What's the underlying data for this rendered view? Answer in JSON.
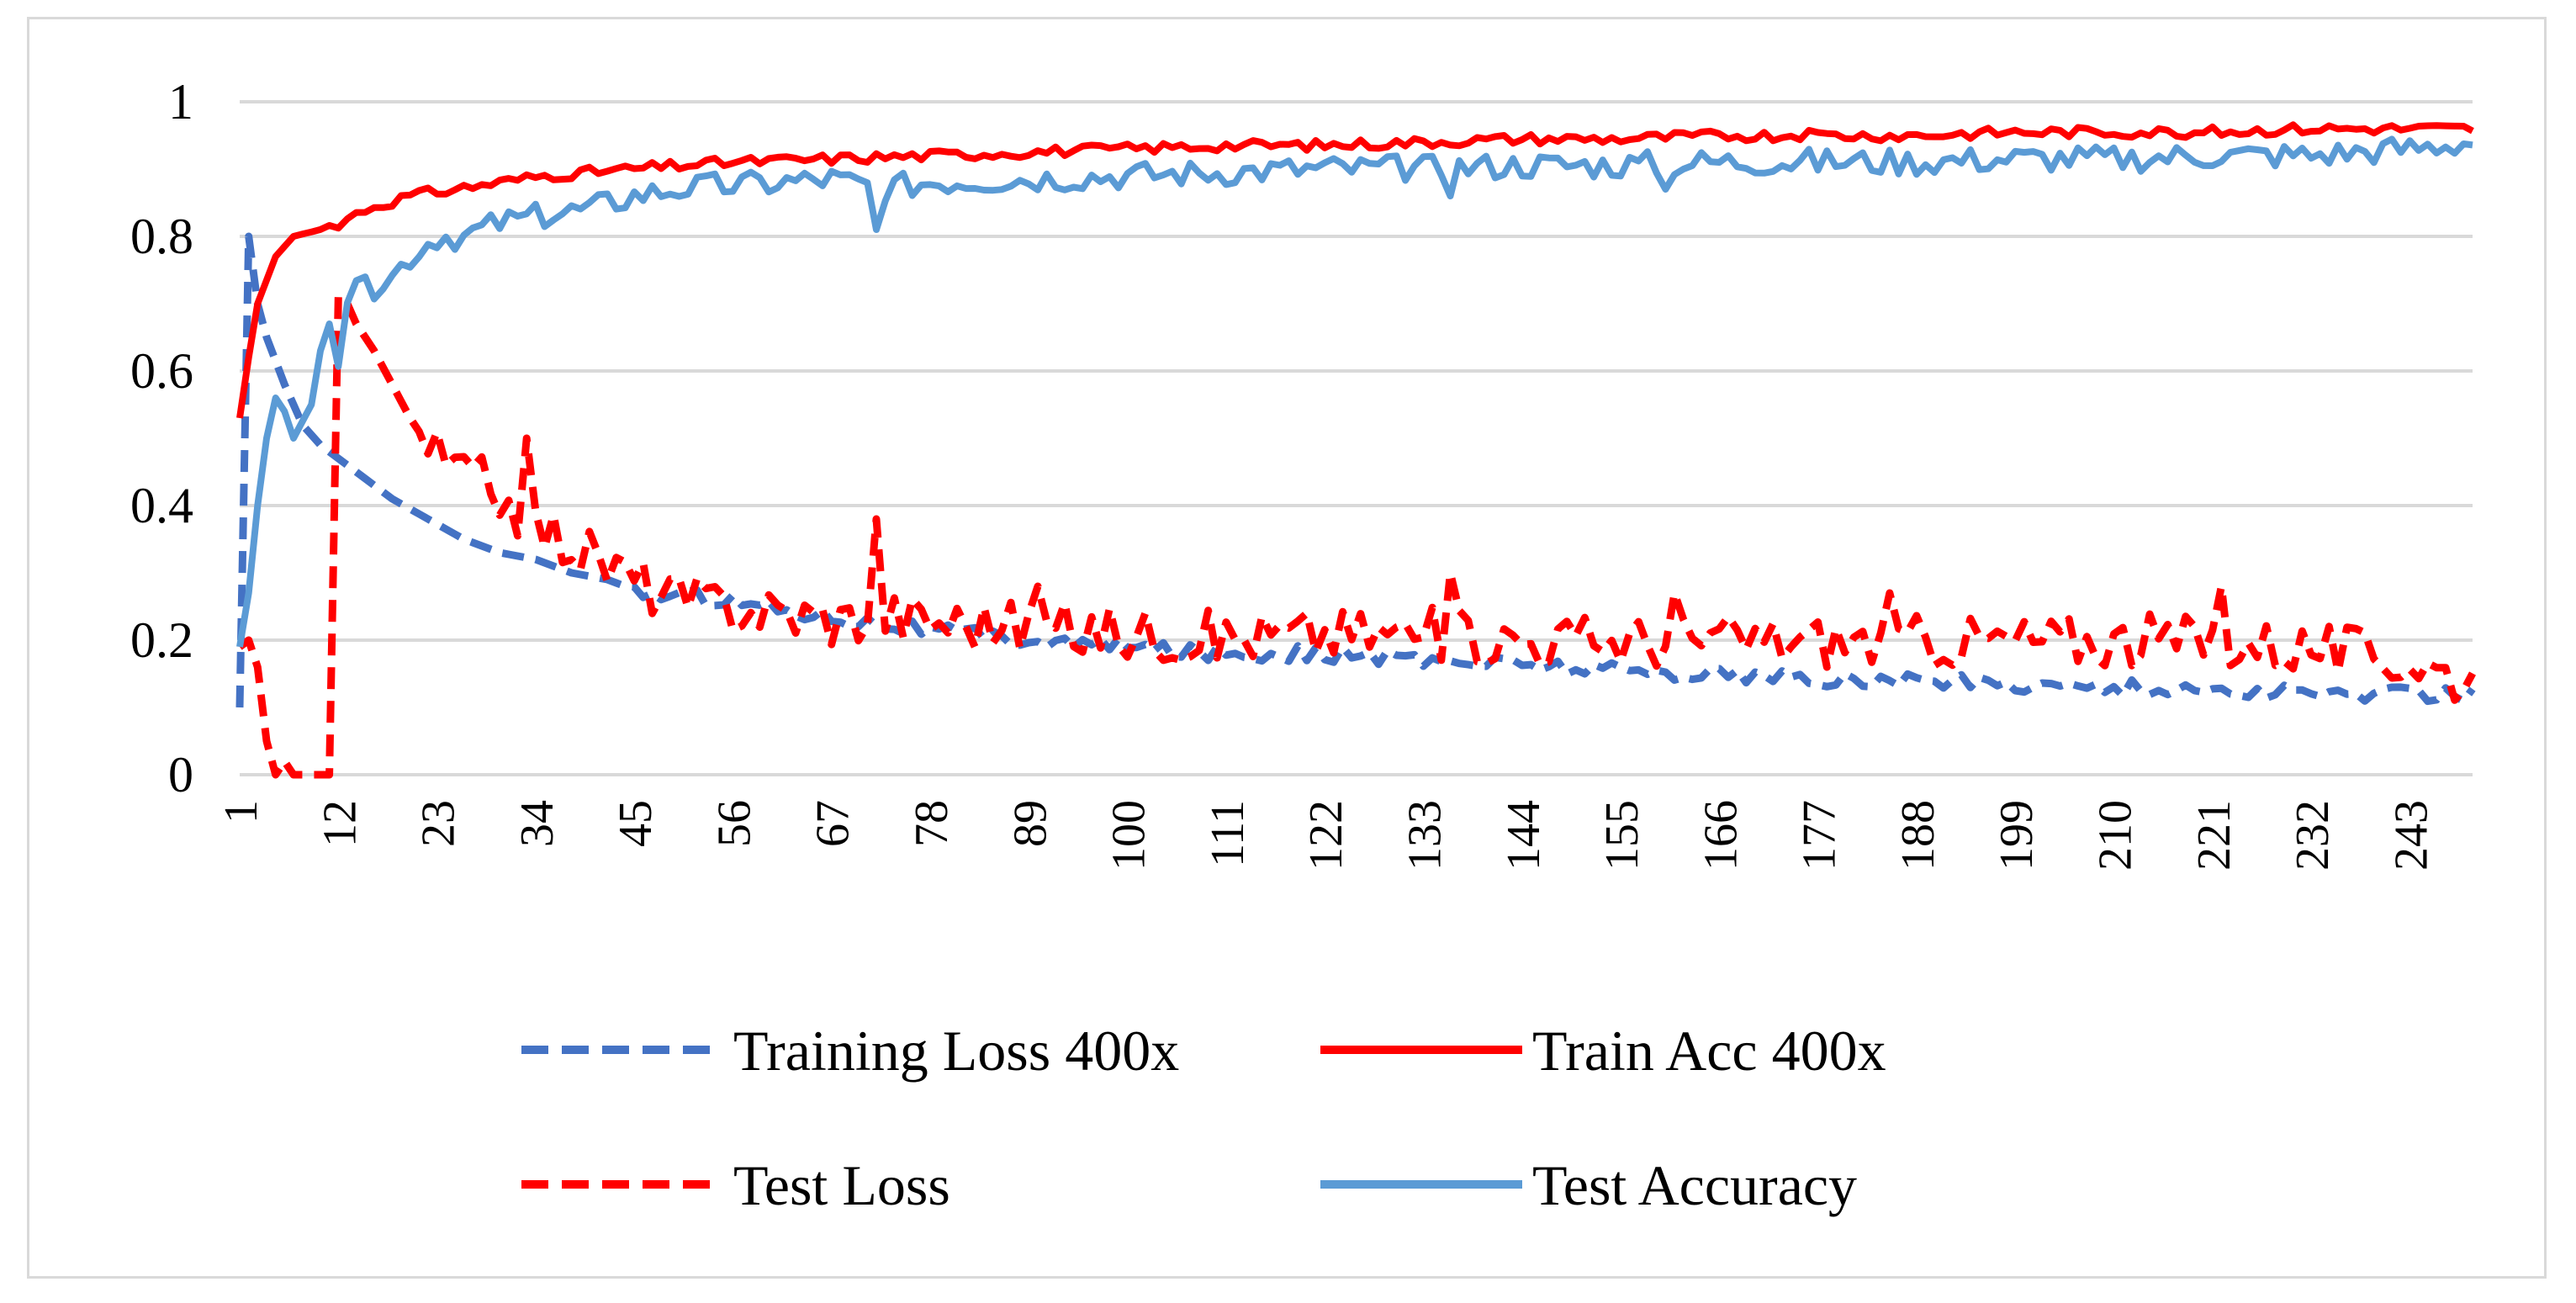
{
  "chart_data": {
    "type": "line",
    "title": "",
    "xlabel": "",
    "ylabel": "",
    "xlim": [
      1,
      250
    ],
    "ylim": [
      0,
      1
    ],
    "grid": true,
    "legend_position": "bottom",
    "y_ticks": [
      "0",
      "0.2",
      "0.4",
      "0.6",
      "0.8",
      "1"
    ],
    "x_ticks": [
      "1",
      "12",
      "23",
      "34",
      "45",
      "56",
      "67",
      "78",
      "89",
      "100",
      "111",
      "122",
      "133",
      "144",
      "155",
      "166",
      "177",
      "188",
      "199",
      "210",
      "221",
      "232",
      "243"
    ],
    "series": [
      {
        "name": "Training Loss 400x",
        "color": "#4472c4",
        "dash": "dashed",
        "anchors": [
          [
            1,
            0.1
          ],
          [
            2,
            0.8
          ],
          [
            3,
            0.7
          ],
          [
            4,
            0.65
          ],
          [
            6,
            0.58
          ],
          [
            8,
            0.52
          ],
          [
            10,
            0.49
          ],
          [
            12,
            0.47
          ],
          [
            15,
            0.44
          ],
          [
            18,
            0.41
          ],
          [
            22,
            0.38
          ],
          [
            26,
            0.35
          ],
          [
            30,
            0.33
          ],
          [
            34,
            0.32
          ],
          [
            38,
            0.3
          ],
          [
            42,
            0.29
          ],
          [
            46,
            0.27
          ],
          [
            50,
            0.265
          ],
          [
            56,
            0.26
          ],
          [
            62,
            0.245
          ],
          [
            70,
            0.23
          ],
          [
            78,
            0.215
          ],
          [
            89,
            0.2
          ],
          [
            100,
            0.19
          ],
          [
            111,
            0.18
          ],
          [
            122,
            0.18
          ],
          [
            133,
            0.17
          ],
          [
            144,
            0.165
          ],
          [
            155,
            0.155
          ],
          [
            166,
            0.15
          ],
          [
            177,
            0.14
          ],
          [
            188,
            0.14
          ],
          [
            199,
            0.135
          ],
          [
            210,
            0.13
          ],
          [
            221,
            0.125
          ],
          [
            232,
            0.12
          ],
          [
            243,
            0.12
          ],
          [
            250,
            0.12
          ]
        ],
        "noise": 0.012,
        "noise_start": 45
      },
      {
        "name": "Train Acc 400x",
        "color": "#ff0000",
        "dash": "solid",
        "anchors": [
          [
            1,
            0.53
          ],
          [
            2,
            0.62
          ],
          [
            3,
            0.7
          ],
          [
            5,
            0.77
          ],
          [
            7,
            0.8
          ],
          [
            10,
            0.81
          ],
          [
            12,
            0.82
          ],
          [
            15,
            0.84
          ],
          [
            20,
            0.86
          ],
          [
            25,
            0.87
          ],
          [
            30,
            0.88
          ],
          [
            35,
            0.89
          ],
          [
            40,
            0.895
          ],
          [
            45,
            0.9
          ],
          [
            50,
            0.905
          ],
          [
            56,
            0.91
          ],
          [
            67,
            0.915
          ],
          [
            78,
            0.92
          ],
          [
            89,
            0.925
          ],
          [
            100,
            0.93
          ],
          [
            111,
            0.935
          ],
          [
            122,
            0.935
          ],
          [
            133,
            0.94
          ],
          [
            144,
            0.945
          ],
          [
            155,
            0.945
          ],
          [
            166,
            0.95
          ],
          [
            177,
            0.95
          ],
          [
            188,
            0.95
          ],
          [
            199,
            0.955
          ],
          [
            210,
            0.955
          ],
          [
            221,
            0.955
          ],
          [
            232,
            0.96
          ],
          [
            243,
            0.96
          ],
          [
            250,
            0.96
          ]
        ],
        "noise": 0.008,
        "noise_start": 10
      },
      {
        "name": "Test Loss",
        "color": "#ff0000",
        "dash": "dashed",
        "anchors": [
          [
            1,
            0.19
          ],
          [
            2,
            0.2
          ],
          [
            3,
            0.16
          ],
          [
            4,
            0.05
          ],
          [
            5,
            0.0
          ],
          [
            6,
            0.02
          ],
          [
            7,
            0.0
          ],
          [
            8,
            0.0
          ],
          [
            9,
            0.0
          ],
          [
            10,
            0.0
          ],
          [
            11,
            0.0
          ],
          [
            12,
            0.71
          ],
          [
            13,
            0.7
          ],
          [
            14,
            0.67
          ],
          [
            16,
            0.63
          ],
          [
            18,
            0.58
          ],
          [
            20,
            0.53
          ],
          [
            22,
            0.49
          ],
          [
            24,
            0.46
          ],
          [
            27,
            0.44
          ],
          [
            30,
            0.42
          ],
          [
            33,
            0.38
          ],
          [
            37,
            0.35
          ],
          [
            41,
            0.32
          ],
          [
            45,
            0.29
          ],
          [
            50,
            0.26
          ],
          [
            56,
            0.25
          ],
          [
            62,
            0.24
          ],
          [
            68,
            0.23
          ],
          [
            72,
            0.24
          ],
          [
            78,
            0.23
          ],
          [
            89,
            0.22
          ],
          [
            100,
            0.21
          ],
          [
            111,
            0.205
          ],
          [
            122,
            0.21
          ],
          [
            133,
            0.21
          ],
          [
            144,
            0.2
          ],
          [
            155,
            0.2
          ],
          [
            166,
            0.2
          ],
          [
            177,
            0.2
          ],
          [
            188,
            0.2
          ],
          [
            199,
            0.2
          ],
          [
            210,
            0.2
          ],
          [
            221,
            0.2
          ],
          [
            232,
            0.19
          ],
          [
            243,
            0.17
          ],
          [
            250,
            0.14
          ]
        ],
        "noise": 0.04,
        "noise_start": 22,
        "spikes": [
          [
            33,
            0.5
          ],
          [
            72,
            0.38
          ],
          [
            90,
            0.28
          ],
          [
            136,
            0.3
          ],
          [
            161,
            0.27
          ],
          [
            185,
            0.27
          ],
          [
            222,
            0.28
          ]
        ]
      },
      {
        "name": "Test Accuracy",
        "color": "#5b9bd5",
        "dash": "solid",
        "anchors": [
          [
            1,
            0.19
          ],
          [
            2,
            0.27
          ],
          [
            3,
            0.4
          ],
          [
            4,
            0.5
          ],
          [
            5,
            0.56
          ],
          [
            6,
            0.54
          ],
          [
            7,
            0.5
          ],
          [
            9,
            0.55
          ],
          [
            10,
            0.63
          ],
          [
            11,
            0.67
          ],
          [
            12,
            0.62
          ],
          [
            13,
            0.71
          ],
          [
            15,
            0.72
          ],
          [
            18,
            0.74
          ],
          [
            20,
            0.77
          ],
          [
            23,
            0.8
          ],
          [
            26,
            0.8
          ],
          [
            30,
            0.82
          ],
          [
            35,
            0.83
          ],
          [
            40,
            0.84
          ],
          [
            45,
            0.86
          ],
          [
            50,
            0.87
          ],
          [
            56,
            0.875
          ],
          [
            62,
            0.88
          ],
          [
            67,
            0.885
          ],
          [
            72,
            0.87
          ],
          [
            78,
            0.88
          ],
          [
            89,
            0.885
          ],
          [
            100,
            0.89
          ],
          [
            111,
            0.895
          ],
          [
            122,
            0.9
          ],
          [
            133,
            0.9
          ],
          [
            144,
            0.905
          ],
          [
            155,
            0.905
          ],
          [
            166,
            0.91
          ],
          [
            177,
            0.91
          ],
          [
            188,
            0.91
          ],
          [
            199,
            0.915
          ],
          [
            210,
            0.915
          ],
          [
            221,
            0.92
          ],
          [
            232,
            0.92
          ],
          [
            243,
            0.93
          ],
          [
            250,
            0.94
          ]
        ],
        "noise": 0.02,
        "noise_start": 12,
        "spikes": [
          [
            72,
            0.81
          ],
          [
            136,
            0.86
          ],
          [
            160,
            0.87
          ]
        ]
      }
    ]
  }
}
